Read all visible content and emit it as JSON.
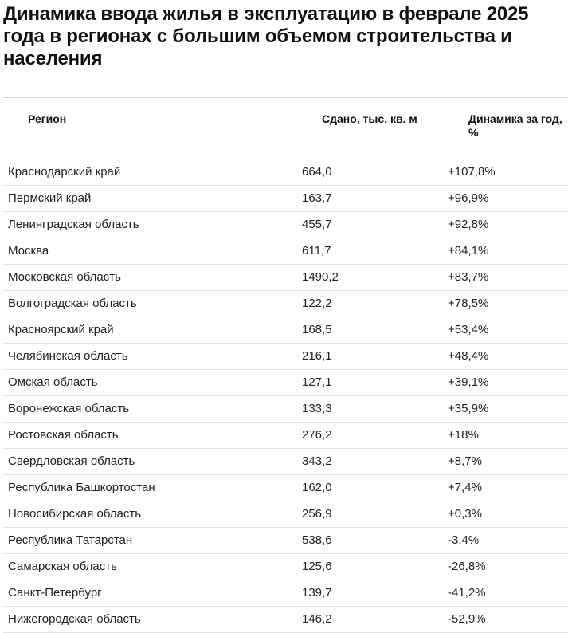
{
  "title": "Динамика ввода жилья в эксплуатацию в феврале 2025 года в регионах с большим объемом строительства и населения",
  "table": {
    "headers": {
      "region": "Регион",
      "area": "Сдано, тыс. кв. м",
      "dynamics": "Динамика за год, %"
    },
    "rows": [
      {
        "region": "Краснодарский край",
        "area": "664,0",
        "dynamics": "+107,8%"
      },
      {
        "region": "Пермский край",
        "area": "163,7",
        "dynamics": "+96,9%"
      },
      {
        "region": "Ленинградская область",
        "area": "455,7",
        "dynamics": "+92,8%"
      },
      {
        "region": "Москва",
        "area": "611,7",
        "dynamics": "+84,1%"
      },
      {
        "region": "Московская область",
        "area": "1490,2",
        "dynamics": "+83,7%"
      },
      {
        "region": "Волгоградская область",
        "area": "122,2",
        "dynamics": "+78,5%"
      },
      {
        "region": "Красноярский край",
        "area": "168,5",
        "dynamics": "+53,4%"
      },
      {
        "region": "Челябинская область",
        "area": "216,1",
        "dynamics": "+48,4%"
      },
      {
        "region": "Омская область",
        "area": "127,1",
        "dynamics": "+39,1%"
      },
      {
        "region": "Воронежская область",
        "area": "133,3",
        "dynamics": "+35,9%"
      },
      {
        "region": "Ростовская область",
        "area": "276,2",
        "dynamics": "+18%"
      },
      {
        "region": "Свердловская область",
        "area": "343,2",
        "dynamics": "+8,7%"
      },
      {
        "region": "Республика Башкортостан",
        "area": "162,0",
        "dynamics": "+7,4%"
      },
      {
        "region": "Новосибирская область",
        "area": "256,9",
        "dynamics": "+0,3%"
      },
      {
        "region": "Республика Татарстан",
        "area": "538,6",
        "dynamics": "-3,4%"
      },
      {
        "region": "Самарская область",
        "area": "125,6",
        "dynamics": "-26,8%"
      },
      {
        "region": "Санкт-Петербург",
        "area": "139,7",
        "dynamics": "-41,2%"
      },
      {
        "region": "Нижегородская область",
        "area": "146,2",
        "dynamics": "-52,9%"
      }
    ]
  }
}
